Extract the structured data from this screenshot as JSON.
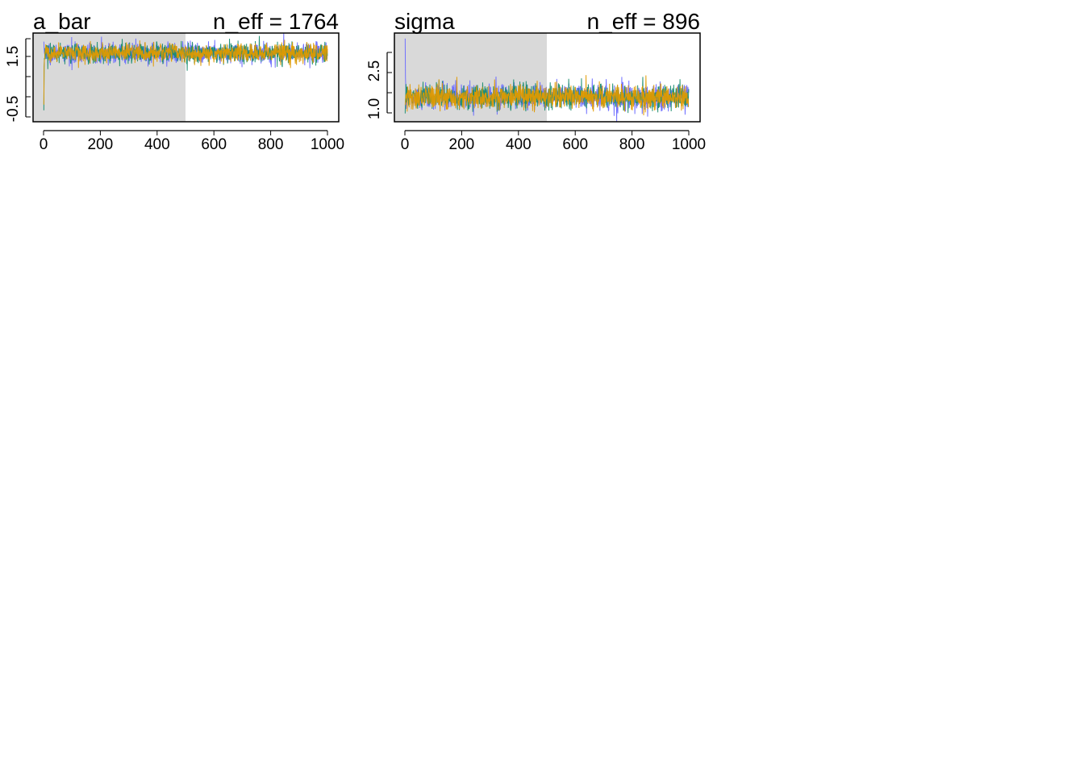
{
  "chart_data": [
    {
      "type": "line",
      "title": "a_bar",
      "annotation": "n_eff = 1764",
      "xlim": [
        0,
        1000
      ],
      "ylim": [
        -0.9,
        2.2
      ],
      "x_ticks": [
        "0",
        "200",
        "400",
        "600",
        "800",
        "1000"
      ],
      "y_ticks": [
        "-0.5",
        "1.5"
      ],
      "warmup_region": [
        0,
        500
      ],
      "iterations": 1000,
      "series_colors": [
        "#6B6BFF",
        "#1A8C6E",
        "#E09A00"
      ],
      "center": 1.5,
      "spread": 0.17,
      "start_values": [
        1.9,
        -0.5,
        -0.3
      ]
    },
    {
      "type": "line",
      "title": "sigma",
      "annotation": "n_eff = 896",
      "xlim": [
        0,
        1000
      ],
      "ylim": [
        0.7,
        3.9
      ],
      "x_ticks": [
        "0",
        "200",
        "400",
        "600",
        "800",
        "1000"
      ],
      "y_ticks": [
        "1.0",
        "2.5"
      ],
      "warmup_region": [
        0,
        500
      ],
      "iterations": 1000,
      "series_colors": [
        "#6B6BFF",
        "#1A8C6E",
        "#E09A00"
      ],
      "center": 1.6,
      "spread": 0.22,
      "start_values": [
        3.7,
        1.0,
        1.3
      ]
    }
  ]
}
